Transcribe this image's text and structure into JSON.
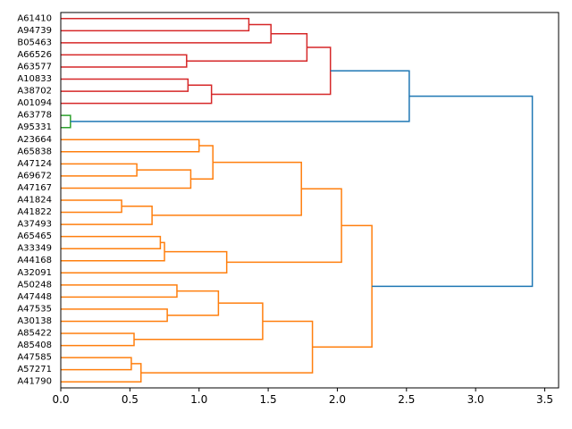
{
  "chart_data": {
    "type": "dendrogram",
    "title": "",
    "xlabel": "",
    "ylabel": "",
    "orientation": "right",
    "xlim": [
      0,
      3.6
    ],
    "xticks": [
      0.0,
      0.5,
      1.0,
      1.5,
      2.0,
      2.5,
      3.0,
      3.5
    ],
    "xtick_labels": [
      "0.0",
      "0.5",
      "1.0",
      "1.5",
      "2.0",
      "2.5",
      "3.0",
      "3.5"
    ],
    "leaves": [
      "A61410",
      "A94739",
      "B05463",
      "A66526",
      "A63577",
      "A10833",
      "A38702",
      "A01094",
      "A63778",
      "A95331",
      "A23664",
      "A65838",
      "A47124",
      "A69672",
      "A47167",
      "A41824",
      "A41822",
      "A37493",
      "A65465",
      "A33349",
      "A44168",
      "A32091",
      "A50248",
      "A47448",
      "A47535",
      "A30138",
      "A85422",
      "A85408",
      "A47585",
      "A57271",
      "A41790"
    ],
    "colors": {
      "cluster_1": "#d62728",
      "cluster_2": "#2ca02c",
      "cluster_3": "#ff7f0e",
      "above_threshold": "#1f77b4"
    },
    "merges": [
      {
        "id": "m1",
        "left": "A61410",
        "right": "A94739",
        "height": 1.36,
        "color": "cluster_1"
      },
      {
        "id": "m2",
        "left": "m1",
        "right": "B05463",
        "height": 1.52,
        "color": "cluster_1"
      },
      {
        "id": "m3",
        "left": "A66526",
        "right": "A63577",
        "height": 0.91,
        "color": "cluster_1"
      },
      {
        "id": "m4",
        "left": "m2",
        "right": "m3",
        "height": 1.78,
        "color": "cluster_1"
      },
      {
        "id": "m5",
        "left": "A10833",
        "right": "A38702",
        "height": 0.92,
        "color": "cluster_1"
      },
      {
        "id": "m6",
        "left": "m5",
        "right": "A01094",
        "height": 1.09,
        "color": "cluster_1"
      },
      {
        "id": "m7",
        "left": "m4",
        "right": "m6",
        "height": 1.95,
        "color": "cluster_1"
      },
      {
        "id": "m8",
        "left": "A63778",
        "right": "A95331",
        "height": 0.07,
        "color": "cluster_2"
      },
      {
        "id": "m9",
        "left": "m7",
        "right": "m8",
        "height": 2.52,
        "color": "above_threshold"
      },
      {
        "id": "m10",
        "left": "A23664",
        "right": "A65838",
        "height": 1.0,
        "color": "cluster_3"
      },
      {
        "id": "m11",
        "left": "A47124",
        "right": "A69672",
        "height": 0.55,
        "color": "cluster_3"
      },
      {
        "id": "m12",
        "left": "m11",
        "right": "A47167",
        "height": 0.94,
        "color": "cluster_3"
      },
      {
        "id": "m13",
        "left": "m10",
        "right": "m12",
        "height": 1.1,
        "color": "cluster_3"
      },
      {
        "id": "m14",
        "left": "A41824",
        "right": "A41822",
        "height": 0.44,
        "color": "cluster_3"
      },
      {
        "id": "m15",
        "left": "m14",
        "right": "A37493",
        "height": 0.66,
        "color": "cluster_3"
      },
      {
        "id": "m16",
        "left": "m13",
        "right": "m15",
        "height": 1.74,
        "color": "cluster_3"
      },
      {
        "id": "m17",
        "left": "A65465",
        "right": "A33349",
        "height": 0.72,
        "color": "cluster_3"
      },
      {
        "id": "m18",
        "left": "m17",
        "right": "A44168",
        "height": 0.75,
        "color": "cluster_3"
      },
      {
        "id": "m19",
        "left": "m18",
        "right": "A32091",
        "height": 1.2,
        "color": "cluster_3"
      },
      {
        "id": "m20",
        "left": "m16",
        "right": "m19",
        "height": 2.03,
        "color": "cluster_3"
      },
      {
        "id": "m21",
        "left": "A50248",
        "right": "A47448",
        "height": 0.84,
        "color": "cluster_3"
      },
      {
        "id": "m22",
        "left": "A47535",
        "right": "A30138",
        "height": 0.77,
        "color": "cluster_3"
      },
      {
        "id": "m23",
        "left": "m21",
        "right": "m22",
        "height": 1.14,
        "color": "cluster_3"
      },
      {
        "id": "m24",
        "left": "A85422",
        "right": "A85408",
        "height": 0.53,
        "color": "cluster_3"
      },
      {
        "id": "m25",
        "left": "m23",
        "right": "m24",
        "height": 1.46,
        "color": "cluster_3"
      },
      {
        "id": "m26",
        "left": "A47585",
        "right": "A57271",
        "height": 0.51,
        "color": "cluster_3"
      },
      {
        "id": "m27",
        "left": "m26",
        "right": "A41790",
        "height": 0.58,
        "color": "cluster_3"
      },
      {
        "id": "m28",
        "left": "m25",
        "right": "m27",
        "height": 1.82,
        "color": "cluster_3"
      },
      {
        "id": "m29",
        "left": "m20",
        "right": "m28",
        "height": 2.25,
        "color": "cluster_3"
      },
      {
        "id": "m30",
        "left": "m9",
        "right": "m29",
        "height": 3.41,
        "color": "above_threshold"
      }
    ]
  }
}
